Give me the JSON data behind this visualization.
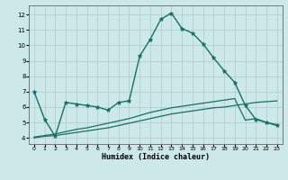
{
  "title": "",
  "xlabel": "Humidex (Indice chaleur)",
  "ylabel": "",
  "background_color": "#cce8e8",
  "grid_color": "#aacccc",
  "line_color": "#1a6e64",
  "xlim": [
    -0.5,
    23.5
  ],
  "ylim": [
    3.6,
    12.6
  ],
  "xticks": [
    0,
    1,
    2,
    3,
    4,
    5,
    6,
    7,
    8,
    9,
    10,
    11,
    12,
    13,
    14,
    15,
    16,
    17,
    18,
    19,
    20,
    21,
    22,
    23
  ],
  "yticks": [
    4,
    5,
    6,
    7,
    8,
    9,
    10,
    11,
    12
  ],
  "curve1_x": [
    0,
    1,
    2,
    3,
    4,
    5,
    6,
    7,
    8,
    9,
    10,
    11,
    12,
    13,
    14,
    15,
    16,
    17,
    18,
    19,
    20,
    21,
    22,
    23
  ],
  "curve1_y": [
    7.0,
    5.2,
    4.1,
    6.3,
    6.2,
    6.1,
    6.0,
    5.8,
    6.3,
    6.4,
    9.3,
    10.4,
    11.7,
    12.1,
    11.1,
    10.8,
    10.1,
    9.2,
    8.35,
    7.6,
    6.1,
    5.2,
    5.0,
    4.8
  ],
  "curve2_x": [
    0,
    1,
    2,
    3,
    4,
    5,
    6,
    7,
    8,
    9,
    10,
    11,
    12,
    13,
    14,
    15,
    16,
    17,
    18,
    19,
    20,
    21,
    22,
    23
  ],
  "curve2_y": [
    4.0,
    4.1,
    4.15,
    4.25,
    4.35,
    4.45,
    4.55,
    4.65,
    4.8,
    4.95,
    5.1,
    5.25,
    5.4,
    5.55,
    5.65,
    5.75,
    5.85,
    5.95,
    6.0,
    6.1,
    6.2,
    6.3,
    6.35,
    6.4
  ],
  "curve3_x": [
    0,
    1,
    2,
    3,
    4,
    5,
    6,
    7,
    8,
    9,
    10,
    11,
    12,
    13,
    14,
    15,
    16,
    17,
    18,
    19,
    20,
    21,
    22,
    23
  ],
  "curve3_y": [
    4.05,
    4.15,
    4.25,
    4.4,
    4.55,
    4.65,
    4.8,
    4.95,
    5.1,
    5.25,
    5.45,
    5.65,
    5.8,
    5.95,
    6.05,
    6.15,
    6.25,
    6.35,
    6.45,
    6.55,
    5.15,
    5.25,
    5.0,
    4.85
  ]
}
